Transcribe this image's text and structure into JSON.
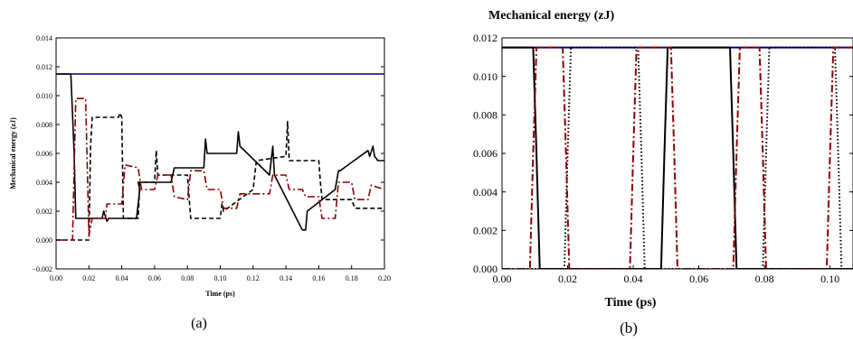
{
  "chart_data": [
    {
      "type": "line",
      "caption": "(a)",
      "title": "",
      "xlabel": "Time (ps)",
      "ylabel": "Mechanical energy (zJ)",
      "xlim": [
        0.0,
        0.2
      ],
      "ylim": [
        -0.002,
        0.014
      ],
      "xticks": [
        "0.00",
        "0.02",
        "0.04",
        "0.06",
        "0.08",
        "0.10",
        "0.12",
        "0.14",
        "0.16",
        "0.18",
        "0.20"
      ],
      "yticks": [
        "−0.002",
        "0.000",
        "0.002",
        "0.004",
        "0.006",
        "0.008",
        "0.010",
        "0.012",
        "0.014"
      ],
      "grid": false,
      "series": [
        {
          "style": "solid",
          "color": "#000080",
          "x": [
            0,
            0.2
          ],
          "y": [
            0.0115,
            0.0115
          ]
        },
        {
          "style": "solid",
          "color": "#000000",
          "x": [
            0,
            0.009,
            0.011,
            0.012,
            0.028,
            0.029,
            0.031,
            0.032,
            0.049,
            0.051,
            0.05,
            0.07,
            0.072,
            0.09,
            0.091,
            0.092,
            0.11,
            0.111,
            0.112,
            0.13,
            0.132,
            0.133,
            0.15,
            0.152,
            0.153,
            0.17,
            0.172,
            0.173,
            0.19,
            0.191,
            0.193,
            0.194,
            0.196,
            0.2
          ],
          "y": [
            0.0115,
            0.0115,
            0.006,
            0.0015,
            0.0015,
            0.002,
            0.0013,
            0.0015,
            0.0015,
            0.0035,
            0.004,
            0.004,
            0.005,
            0.005,
            0.007,
            0.006,
            0.006,
            0.0075,
            0.0065,
            0.0045,
            0.0065,
            0.0045,
            0.0007,
            0.0007,
            0.002,
            0.0035,
            0.0048,
            0.0048,
            0.0062,
            0.0058,
            0.0065,
            0.0058,
            0.0055,
            0.0055
          ]
        },
        {
          "style": "dashed",
          "color": "#000000",
          "x": [
            0,
            0.02,
            0.021,
            0.022,
            0.038,
            0.039,
            0.04,
            0.041,
            0.05,
            0.051,
            0.06,
            0.061,
            0.062,
            0.08,
            0.082,
            0.1,
            0.101,
            0.102,
            0.12,
            0.122,
            0.14,
            0.141,
            0.142,
            0.16,
            0.161,
            0.162,
            0.18,
            0.182,
            0.2
          ],
          "y": [
            0,
            0,
            0.0065,
            0.0085,
            0.0085,
            0.0088,
            0.0085,
            0.0015,
            0.0015,
            0.004,
            0.004,
            0.0062,
            0.0045,
            0.0045,
            0.0015,
            0.0015,
            0.0025,
            0.002,
            0.0035,
            0.0055,
            0.0058,
            0.0082,
            0.0055,
            0.0055,
            0.004,
            0.0028,
            0.0028,
            0.0022,
            0.0022
          ]
        },
        {
          "style": "dashdot",
          "color": "#8b0000",
          "x": [
            0,
            0.01,
            0.012,
            0.018,
            0.02,
            0.022,
            0.03,
            0.031,
            0.04,
            0.042,
            0.05,
            0.052,
            0.06,
            0.062,
            0.07,
            0.072,
            0.08,
            0.082,
            0.09,
            0.092,
            0.1,
            0.102,
            0.11,
            0.112,
            0.13,
            0.132,
            0.14,
            0.142,
            0.15,
            0.152,
            0.16,
            0.162,
            0.17,
            0.172,
            0.18,
            0.182,
            0.19,
            0.192,
            0.2
          ],
          "y": [
            0,
            0,
            0.0098,
            0.0098,
            0.0003,
            0.0015,
            0.0015,
            0.0025,
            0.0025,
            0.0052,
            0.005,
            0.0035,
            0.0035,
            0.0045,
            0.0045,
            0.003,
            0.0028,
            0.0048,
            0.0048,
            0.0035,
            0.0035,
            0.0022,
            0.0022,
            0.0032,
            0.0032,
            0.0045,
            0.0045,
            0.0035,
            0.0035,
            0.003,
            0.003,
            0.0015,
            0.0015,
            0.004,
            0.004,
            0.0028,
            0.0028,
            0.0038,
            0.0035
          ]
        }
      ]
    },
    {
      "type": "line",
      "caption": "(b)",
      "title": "Mechanical energy (zJ)",
      "xlabel": "Time (ps)",
      "ylabel": "",
      "xlim": [
        0.0,
        0.107
      ],
      "ylim": [
        0.0,
        0.012
      ],
      "xticks": [
        "0.00",
        "0.02",
        "0.04",
        "0.06",
        "0.08",
        "0.10"
      ],
      "yticks": [
        "0.000",
        "0.002",
        "0.004",
        "0.006",
        "0.008",
        "0.010",
        "0.012"
      ],
      "grid": false,
      "series": [
        {
          "style": "solid",
          "color": "#000080",
          "x": [
            0,
            0.107
          ],
          "y": [
            0.0115,
            0.0115
          ]
        },
        {
          "style": "solid",
          "color": "#000000",
          "x": [
            0,
            0.0095,
            0.0105,
            0.0115,
            0.0485,
            0.0495,
            0.0505,
            0.0515,
            0.0695,
            0.0705,
            0.0715,
            0.107
          ],
          "y": [
            0.0115,
            0.0115,
            0.006,
            0,
            0,
            0.006,
            0.0115,
            0.0115,
            0.0115,
            0.006,
            0,
            0
          ]
        },
        {
          "style": "dotted",
          "color": "#000000",
          "x": [
            0,
            0.019,
            0.02,
            0.021,
            0.0415,
            0.0425,
            0.0435,
            0.0795,
            0.0805,
            0.0815,
            0.1015,
            0.1025,
            0.1035,
            0.107
          ],
          "y": [
            0,
            0,
            0.006,
            0.0115,
            0.0115,
            0.006,
            0,
            0,
            0.006,
            0.0115,
            0.0115,
            0.006,
            0,
            0
          ]
        },
        {
          "style": "dashdot",
          "color": "#8b0000",
          "x": [
            0,
            0.0085,
            0.0095,
            0.0105,
            0.0185,
            0.0195,
            0.0205,
            0.039,
            0.04,
            0.041,
            0.0515,
            0.0525,
            0.0535,
            0.0705,
            0.0715,
            0.0725,
            0.0785,
            0.0795,
            0.0805,
            0.099,
            0.1,
            0.101,
            0.107
          ],
          "y": [
            0,
            0,
            0.006,
            0.0115,
            0.0115,
            0.006,
            0,
            0,
            0.006,
            0.0115,
            0.0115,
            0.006,
            0,
            0,
            0.006,
            0.0115,
            0.0115,
            0.006,
            0,
            0,
            0.006,
            0.0115,
            0.0115
          ]
        }
      ]
    }
  ]
}
